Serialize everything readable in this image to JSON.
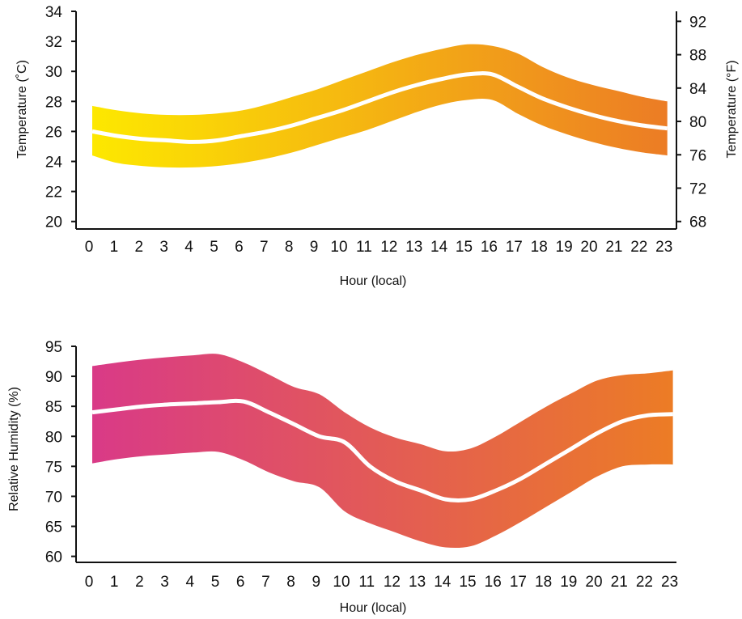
{
  "chart_data": [
    {
      "type": "area",
      "title": "",
      "xlabel": "Hour (local)",
      "ylabel": "Temperature (˚C)",
      "ylabel_right": "Temperature (°F)",
      "x": [
        0,
        1,
        2,
        3,
        4,
        5,
        6,
        7,
        8,
        9,
        10,
        11,
        12,
        13,
        14,
        15,
        16,
        17,
        18,
        19,
        20,
        21,
        22,
        23
      ],
      "x_ticks": [
        "0",
        "1",
        "2",
        "3",
        "4",
        "5",
        "6",
        "7",
        "8",
        "9",
        "10",
        "11",
        "12",
        "13",
        "14",
        "15",
        "16",
        "17",
        "18",
        "19",
        "20",
        "21",
        "22",
        "23"
      ],
      "ylim": [
        19.5,
        34
      ],
      "yticks": [
        "20",
        "22",
        "24",
        "26",
        "28",
        "30",
        "32",
        "34"
      ],
      "ylim_right": [
        67.1,
        93.2
      ],
      "yticks_right": [
        "68",
        "72",
        "76",
        "80",
        "84",
        "88",
        "92"
      ],
      "series": [
        {
          "values": [
            26.0,
            25.7,
            25.5,
            25.4,
            25.3,
            25.4,
            25.7,
            26.0,
            26.4,
            26.9,
            27.4,
            28.0,
            28.6,
            29.1,
            29.5,
            29.8,
            29.8,
            29.0,
            28.2,
            27.6,
            27.1,
            26.7,
            26.4,
            26.2
          ]
        }
      ],
      "band": {
        "lower": [
          24.4,
          23.9,
          23.7,
          23.6,
          23.6,
          23.7,
          23.9,
          24.2,
          24.6,
          25.1,
          25.6,
          26.1,
          26.7,
          27.3,
          27.8,
          28.1,
          28.1,
          27.2,
          26.4,
          25.8,
          25.3,
          24.9,
          24.6,
          24.4
        ],
        "upper": [
          27.7,
          27.4,
          27.2,
          27.1,
          27.1,
          27.2,
          27.4,
          27.8,
          28.3,
          28.8,
          29.4,
          30.0,
          30.6,
          31.1,
          31.5,
          31.8,
          31.7,
          31.2,
          30.3,
          29.6,
          29.1,
          28.7,
          28.3,
          28.0
        ]
      },
      "colors": {
        "start": "#fde800",
        "end": "#ec7c25",
        "line": "#ffffff"
      }
    },
    {
      "type": "area",
      "title": "",
      "xlabel": "Hour (local)",
      "ylabel": "Relative Humidity (%)",
      "x": [
        0,
        1,
        2,
        3,
        4,
        5,
        6,
        7,
        8,
        9,
        10,
        11,
        12,
        13,
        14,
        15,
        16,
        17,
        18,
        19,
        20,
        21,
        22,
        23
      ],
      "x_ticks": [
        "0",
        "1",
        "2",
        "3",
        "4",
        "5",
        "6",
        "7",
        "8",
        "9",
        "10",
        "11",
        "12",
        "13",
        "14",
        "15",
        "16",
        "17",
        "18",
        "19",
        "20",
        "21",
        "22",
        "23"
      ],
      "ylim": [
        59,
        95
      ],
      "yticks": [
        "60",
        "65",
        "70",
        "75",
        "80",
        "85",
        "90",
        "95"
      ],
      "series": [
        {
          "values": [
            84.0,
            84.5,
            85.0,
            85.3,
            85.5,
            85.7,
            85.8,
            84.0,
            82.0,
            80.0,
            79.0,
            75.0,
            72.5,
            71.0,
            69.5,
            69.5,
            71.0,
            73.0,
            75.5,
            78.0,
            80.5,
            82.5,
            83.5,
            83.7
          ]
        }
      ],
      "band": {
        "lower": [
          75.5,
          76.2,
          76.7,
          77.0,
          77.3,
          77.4,
          76.0,
          74.0,
          72.5,
          71.5,
          67.5,
          65.5,
          64.0,
          62.5,
          61.5,
          61.7,
          63.5,
          65.8,
          68.3,
          70.8,
          73.3,
          75.0,
          75.3,
          75.3
        ],
        "upper": [
          91.7,
          92.3,
          92.8,
          93.2,
          93.5,
          93.7,
          92.3,
          90.3,
          88.2,
          87.0,
          84.0,
          81.5,
          79.8,
          78.7,
          77.5,
          78.0,
          80.0,
          82.5,
          85.0,
          87.2,
          89.3,
          90.2,
          90.5,
          91.0
        ]
      },
      "colors": {
        "start": "#d93a87",
        "end": "#ec7c25",
        "line": "#ffffff"
      }
    }
  ]
}
